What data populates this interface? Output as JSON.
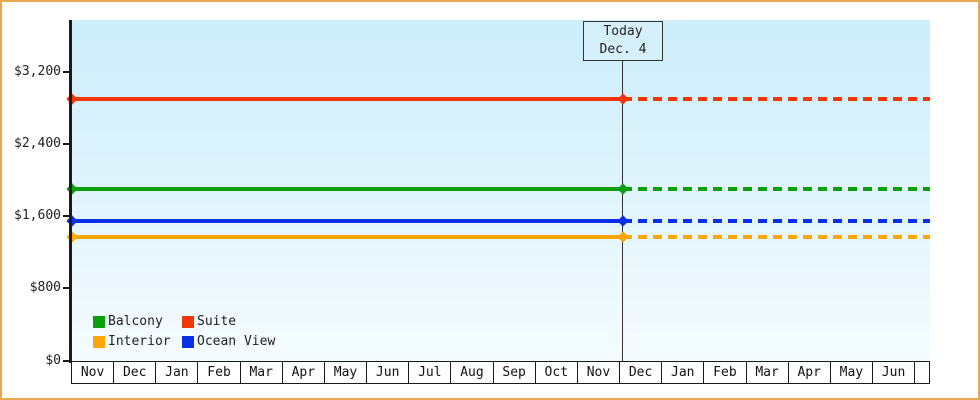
{
  "widget": {
    "description": "cruise cabin price history chart",
    "colors": {
      "frame_border": "#e9a752",
      "plot_bg_top": "#cdeefb",
      "plot_bg_bottom": "#f4fcff",
      "axis": "#1a1a1a",
      "text": "#222222",
      "today_line": "#333333",
      "today_box_bg": "#d6f0fb"
    }
  },
  "today_marker": {
    "line1": "Today",
    "line2": "Dec. 4"
  },
  "legend": {
    "items": [
      {
        "label": "Balcony",
        "color": "#0ba00b",
        "row": 0,
        "col": 0
      },
      {
        "label": "Suite",
        "color": "#f23705",
        "row": 0,
        "col": 1
      },
      {
        "label": "Interior",
        "color": "#ffa607",
        "row": 1,
        "col": 0
      },
      {
        "label": "Ocean View",
        "color": "#0a2fe8",
        "row": 1,
        "col": 1
      }
    ]
  },
  "chart_data": {
    "type": "line",
    "title": "",
    "xlabel": "",
    "ylabel": "",
    "grid": false,
    "legend_position": "bottom-left inside plot",
    "x_categories": [
      "Nov",
      "Dec",
      "Jan",
      "Feb",
      "Mar",
      "Apr",
      "May",
      "Jun",
      "Jul",
      "Aug",
      "Sep",
      "Oct",
      "Nov",
      "Dec",
      "Jan",
      "Feb",
      "Mar",
      "Apr",
      "May",
      "Jun"
    ],
    "y_ticks": [
      {
        "label": "$3,200",
        "value": 3200
      },
      {
        "label": "$2,400",
        "value": 2400
      },
      {
        "label": "$1,600",
        "value": 1600
      },
      {
        "label": "$800",
        "value": 800
      },
      {
        "label": "$0",
        "value": 0
      }
    ],
    "ylim": [
      0,
      3780
    ],
    "series": [
      {
        "name": "Suite",
        "color": "#f23705",
        "value": 2900
      },
      {
        "name": "Balcony",
        "color": "#0ba00b",
        "value": 1900
      },
      {
        "name": "Ocean View",
        "color": "#0a2fe8",
        "value": 1550
      },
      {
        "name": "Interior",
        "color": "#ffa607",
        "value": 1370
      }
    ],
    "today": {
      "label": "Today",
      "date": "Dec. 4",
      "month_index": 13.1
    },
    "note": "Each series is a flat horizontal line with diamond markers at the axis and at today; solid before today, dashed projection after today."
  }
}
